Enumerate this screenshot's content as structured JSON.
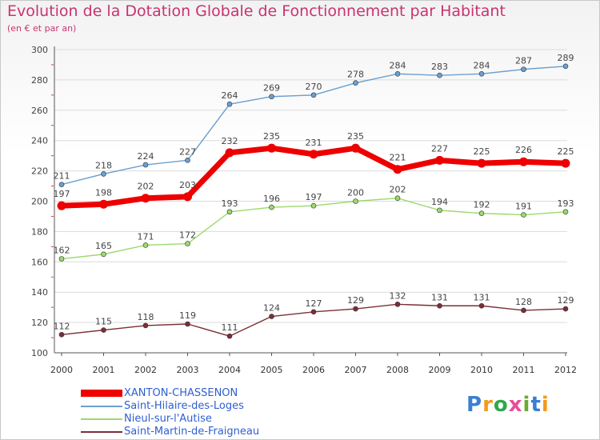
{
  "header": {
    "title": "Evolution de la Dotation Globale de Fonctionnement par Habitant",
    "subtitle": "(en € et par an)"
  },
  "logo": {
    "text": "Proxiti",
    "letter_colors": [
      "#3a7fd0",
      "#f29a1c",
      "#2fa84a",
      "#e84d9a",
      "#6aaa2f",
      "#3a7fd0",
      "#f29a1c"
    ]
  },
  "chart_data": {
    "type": "line",
    "title": "Evolution de la Dotation Globale de Fonctionnement par Habitant",
    "subtitle": "(en € et par an)",
    "xlabel": "",
    "ylabel": "",
    "x": [
      "2000",
      "2001",
      "2002",
      "2003",
      "2004",
      "2005",
      "2006",
      "2007",
      "2008",
      "2009",
      "2010",
      "2011",
      "2012"
    ],
    "ylim": [
      100,
      300
    ],
    "yticks": [
      100,
      120,
      140,
      160,
      180,
      200,
      220,
      240,
      260,
      280,
      300
    ],
    "grid": "horizontal",
    "legend_position": "bottom-left",
    "series": [
      {
        "name": "XANTON-CHASSENON",
        "values": [
          197,
          198,
          202,
          203,
          232,
          235,
          231,
          235,
          221,
          227,
          225,
          226,
          225
        ],
        "color": "#ee0000",
        "emphasis": true
      },
      {
        "name": "Saint-Hilaire-des-Loges",
        "values": [
          211,
          218,
          224,
          227,
          264,
          269,
          270,
          278,
          284,
          283,
          284,
          287,
          289
        ],
        "color": "#6b9fd0",
        "emphasis": false
      },
      {
        "name": "Nieul-sur-l'Autise",
        "values": [
          162,
          165,
          171,
          172,
          193,
          196,
          197,
          200,
          202,
          194,
          192,
          191,
          193
        ],
        "color": "#9cd96e",
        "emphasis": false
      },
      {
        "name": "Saint-Martin-de-Fraigneau",
        "values": [
          112,
          115,
          118,
          119,
          111,
          124,
          127,
          129,
          132,
          131,
          131,
          128,
          129
        ],
        "color": "#7a2f36",
        "emphasis": false
      }
    ]
  }
}
